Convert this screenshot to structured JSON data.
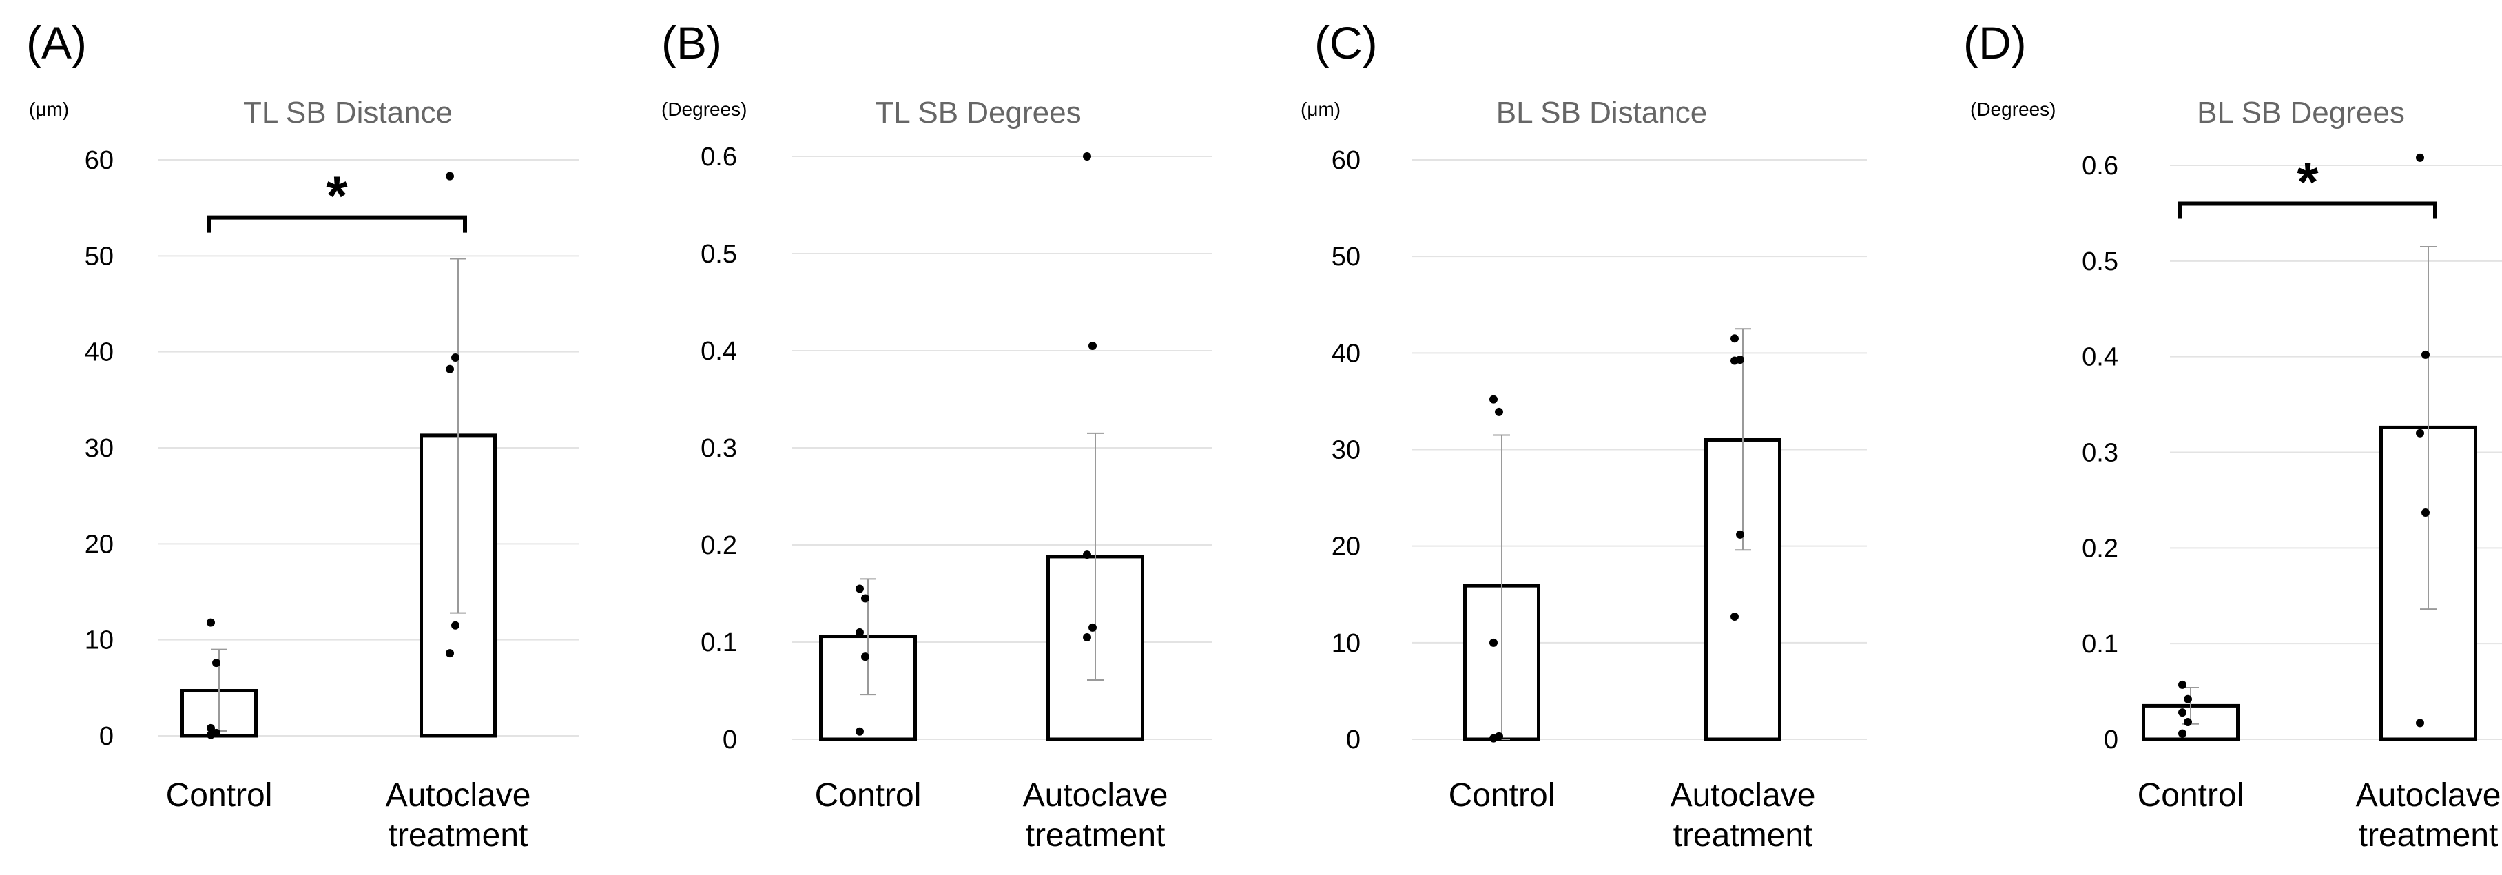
{
  "chart_data": [
    {
      "type": "bar",
      "panel_label": "(A)",
      "title": "TL SB Distance",
      "unit_label": "(μm)",
      "categories": [
        "Control",
        "Autoclave treatment"
      ],
      "category_lines": [
        [
          "Control"
        ],
        [
          "Autoclave",
          "treatment"
        ]
      ],
      "values": [
        4.7,
        31.3
      ],
      "error_low": [
        0.5,
        12.8
      ],
      "error_high": [
        9.0,
        49.7
      ],
      "points": [
        [
          11.8,
          7.6,
          0.8,
          0.3,
          0.1
        ],
        [
          58.3,
          39.4,
          38.2,
          11.5,
          8.6
        ]
      ],
      "ylim": [
        0,
        60
      ],
      "yticks": [
        0,
        10,
        20,
        30,
        40,
        50,
        60
      ],
      "ytick_labels": [
        "0",
        "10",
        "20",
        "30",
        "40",
        "50",
        "60"
      ],
      "significance": {
        "label": "*",
        "value": 54
      }
    },
    {
      "type": "bar",
      "panel_label": "(B)",
      "title": "TL SB Degrees",
      "unit_label": "(Degrees)",
      "categories": [
        "Control",
        "Autoclave treatment"
      ],
      "category_lines": [
        [
          "Control"
        ],
        [
          "Autoclave",
          "treatment"
        ]
      ],
      "values": [
        0.106,
        0.188
      ],
      "error_low": [
        0.046,
        0.061
      ],
      "error_high": [
        0.165,
        0.315
      ],
      "points": [
        [
          0.155,
          0.145,
          0.11,
          0.085,
          0.008
        ],
        [
          0.6,
          0.405,
          0.19,
          0.115,
          0.105
        ]
      ],
      "ylim": [
        0,
        0.6
      ],
      "yticks": [
        0,
        0.1,
        0.2,
        0.3,
        0.4,
        0.5,
        0.6
      ],
      "ytick_labels": [
        "0",
        "0.1",
        "0.2",
        "0.3",
        "0.4",
        "0.5",
        "0.6"
      ],
      "significance": null
    },
    {
      "type": "bar",
      "panel_label": "(C)",
      "title": "BL SB Distance",
      "unit_label": "(μm)",
      "categories": [
        "Control",
        "Autoclave treatment"
      ],
      "category_lines": [
        [
          "Control"
        ],
        [
          "Autoclave",
          "treatment"
        ]
      ],
      "values": [
        15.9,
        31.0
      ],
      "error_low": [
        0.0,
        19.6
      ],
      "error_high": [
        31.5,
        42.5
      ],
      "points": [
        [
          35.2,
          33.9,
          10.0,
          0.3,
          0.1
        ],
        [
          41.5,
          39.3,
          39.2,
          21.2,
          12.7
        ]
      ],
      "ylim": [
        0,
        60
      ],
      "yticks": [
        0,
        10,
        20,
        30,
        40,
        50,
        60
      ],
      "ytick_labels": [
        "0",
        "10",
        "20",
        "30",
        "40",
        "50",
        "60"
      ],
      "significance": null
    },
    {
      "type": "bar",
      "panel_label": "(D)",
      "title": "BL SB Degrees",
      "unit_label": "(Degrees)",
      "categories": [
        "Control",
        "Autoclave treatment"
      ],
      "category_lines": [
        [
          "Control"
        ],
        [
          "Autoclave",
          "treatment"
        ]
      ],
      "values": [
        0.035,
        0.326
      ],
      "error_low": [
        0.016,
        0.136
      ],
      "error_high": [
        0.054,
        0.515
      ],
      "points": [
        [
          0.057,
          0.042,
          0.028,
          0.018,
          0.006
        ],
        [
          0.608,
          0.402,
          0.32,
          0.237,
          0.017
        ]
      ],
      "ylim": [
        0,
        0.6
      ],
      "yticks": [
        0,
        0.1,
        0.2,
        0.3,
        0.4,
        0.5,
        0.6
      ],
      "ytick_labels": [
        "0",
        "0.1",
        "0.2",
        "0.3",
        "0.4",
        "0.5",
        "0.6"
      ],
      "significance": {
        "label": "*",
        "value": 0.56
      }
    }
  ]
}
